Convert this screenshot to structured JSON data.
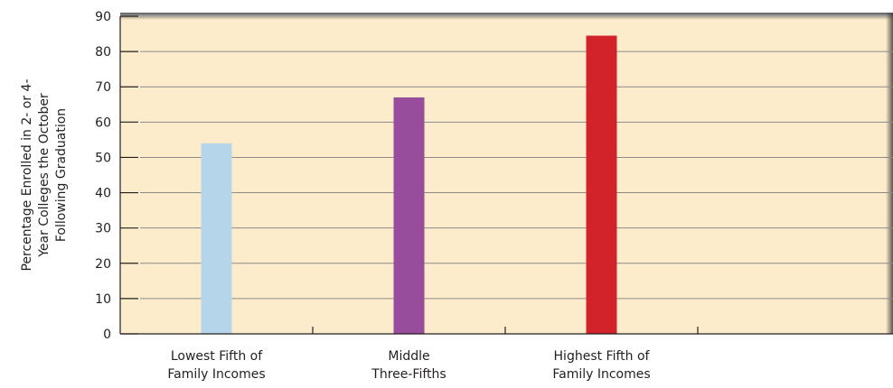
{
  "chart_data": {
    "type": "bar",
    "title": "",
    "xlabel": "",
    "ylabel_lines": [
      "Percentage Enrolled in 2- or 4-",
      "Year Colleges the October",
      "Following Graduation"
    ],
    "categories": [
      {
        "lines": [
          "Lowest Fifth of",
          "Family Incomes"
        ]
      },
      {
        "lines": [
          "Middle",
          "Three-Fifths"
        ]
      },
      {
        "lines": [
          "Highest Fifth of",
          "Family Incomes"
        ]
      }
    ],
    "values": [
      54,
      67,
      84.5
    ],
    "bar_colors": [
      "#b5d5ea",
      "#974c9c",
      "#d2232a"
    ],
    "ylim": [
      0,
      90
    ],
    "yticks": [
      0,
      10,
      20,
      30,
      40,
      50,
      60,
      70,
      80,
      90
    ],
    "grid": true,
    "legend": "none",
    "colors": {
      "plot_background": "#fdeccb",
      "gridline": "#8a8a8a",
      "axis": "#231f20",
      "frame_shadow": "#5a5a5a"
    }
  }
}
